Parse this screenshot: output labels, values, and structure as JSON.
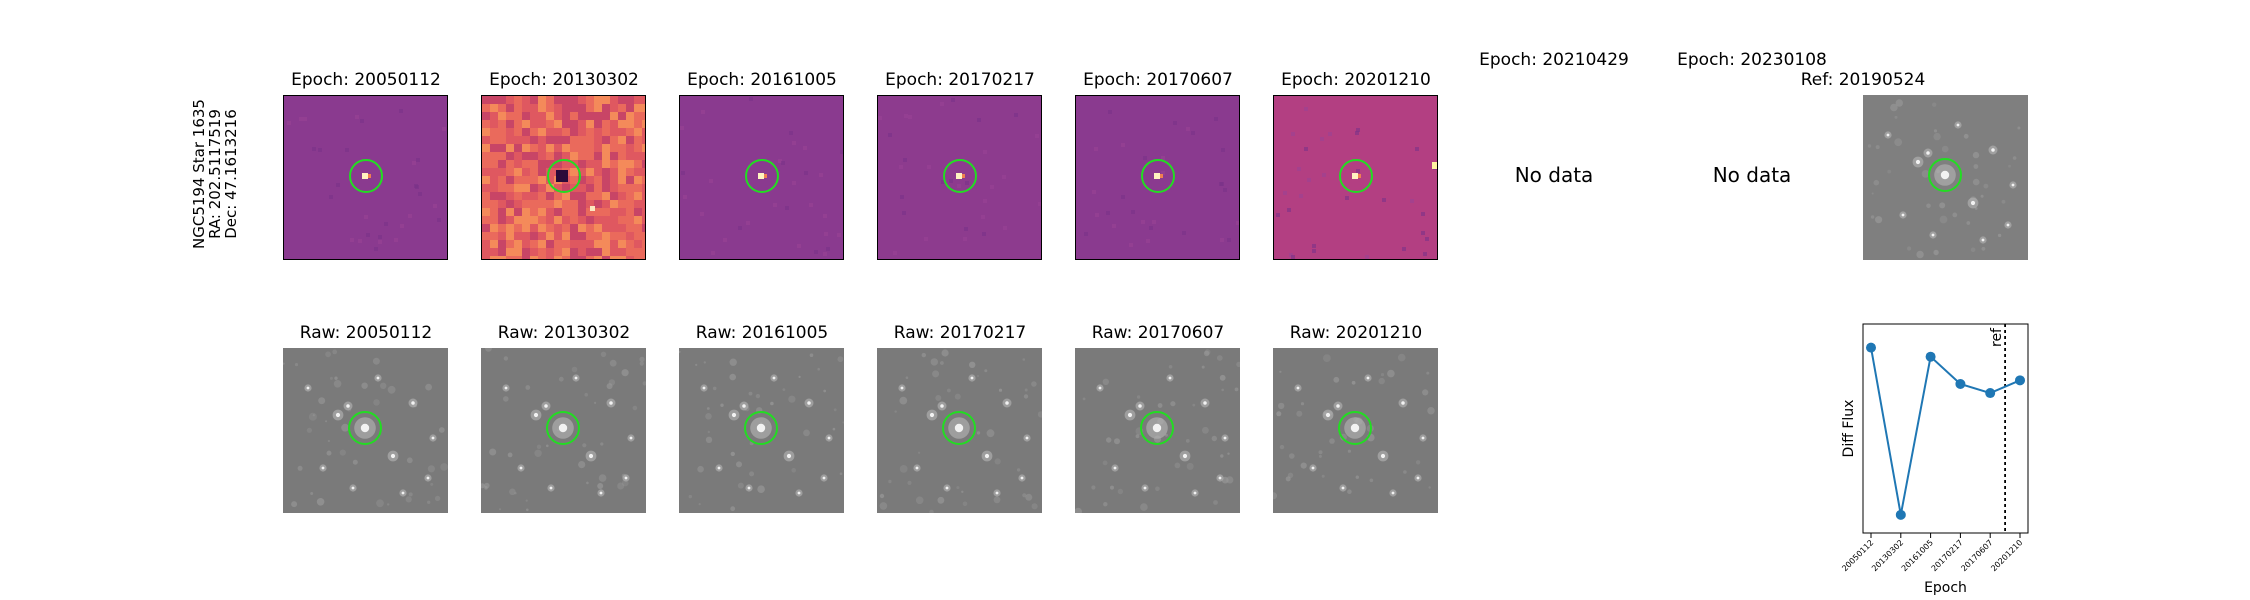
{
  "target": {
    "name": "NGC5194 Star 1635",
    "ra": "RA: 202.5117519",
    "dec": "Dec: 47.1613216"
  },
  "epoch_panels": [
    {
      "title": "Epoch: 20050112",
      "has_data": true,
      "background": "#8a3a8f"
    },
    {
      "title": "Epoch: 20130302",
      "has_data": true,
      "background": "#e4605e"
    },
    {
      "title": "Epoch: 20161005",
      "has_data": true,
      "background": "#8a3a8f"
    },
    {
      "title": "Epoch: 20170217",
      "has_data": true,
      "background": "#8d3b8e"
    },
    {
      "title": "Epoch: 20170607",
      "has_data": true,
      "background": "#8a3a8f"
    },
    {
      "title": "Epoch: 20201210",
      "has_data": true,
      "background": "#b33f82"
    },
    {
      "title": "Epoch: 20210429",
      "has_data": false,
      "nodata_label": "No data"
    },
    {
      "title": "Epoch: 20230108",
      "has_data": false,
      "nodata_label": "No data"
    }
  ],
  "reference_panel": {
    "title": "Ref: 20190524",
    "background": "#7f7f7f"
  },
  "raw_panels": [
    {
      "title": "Raw: 20050112"
    },
    {
      "title": "Raw: 20130302"
    },
    {
      "title": "Raw: 20161005"
    },
    {
      "title": "Raw: 20170217"
    },
    {
      "title": "Raw: 20170607"
    },
    {
      "title": "Raw: 20201210"
    }
  ],
  "colors": {
    "circle": "#22dd22",
    "raw_background": "#7a7a7a",
    "line": "#1f77b4"
  },
  "chart_data": {
    "type": "line",
    "x": [
      "20050112",
      "20130302",
      "20161005",
      "20170217",
      "20170607",
      "20201210"
    ],
    "series": [
      {
        "values": [
          0.92,
          0.0,
          0.87,
          0.72,
          0.67,
          0.74
        ]
      }
    ],
    "reference_line": {
      "after_index": 4.5,
      "label": "ref"
    },
    "xlabel": "Epoch",
    "ylabel": "Diff Flux",
    "ylim": [
      -0.1,
      1.05
    ],
    "grid": false
  }
}
